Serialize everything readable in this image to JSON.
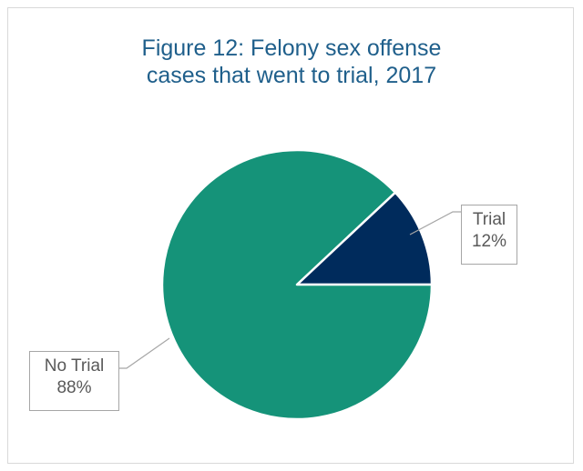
{
  "chart_data": {
    "type": "pie",
    "title": "Figure 12: Felony sex offense cases that went to trial, 2017",
    "title_lines": [
      "Figure 12: Felony sex offense",
      "cases that went to trial, 2017"
    ],
    "slices": [
      {
        "label": "Trial",
        "value": 12,
        "display": "12%",
        "color": "#002b5c"
      },
      {
        "label": "No Trial",
        "value": 88,
        "display": "88%",
        "color": "#159379"
      }
    ],
    "legend": "none",
    "data_labels": "callouts"
  }
}
